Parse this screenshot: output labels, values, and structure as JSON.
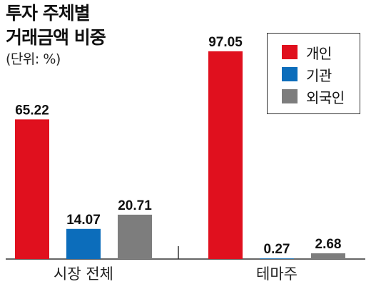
{
  "chart_data": {
    "type": "bar",
    "title_lines": [
      "투자 주체별",
      "거래금액 비중"
    ],
    "unit": "(단위: %)",
    "categories": [
      "시장 전체",
      "테마주"
    ],
    "series": [
      {
        "name": "개인",
        "color": "#e0101e",
        "values": [
          65.22,
          97.05
        ]
      },
      {
        "name": "기관",
        "color": "#0c6dbb",
        "values": [
          14.07,
          0.27
        ]
      },
      {
        "name": "외국인",
        "color": "#7d7d7d",
        "values": [
          20.71,
          2.68
        ]
      }
    ],
    "value_labels": [
      [
        "65.22",
        "97.05"
      ],
      [
        "14.07",
        "0.27"
      ],
      [
        "20.71",
        "2.68"
      ]
    ],
    "ylim": [
      0,
      100
    ],
    "grid": false,
    "legend_position": "top-right"
  }
}
